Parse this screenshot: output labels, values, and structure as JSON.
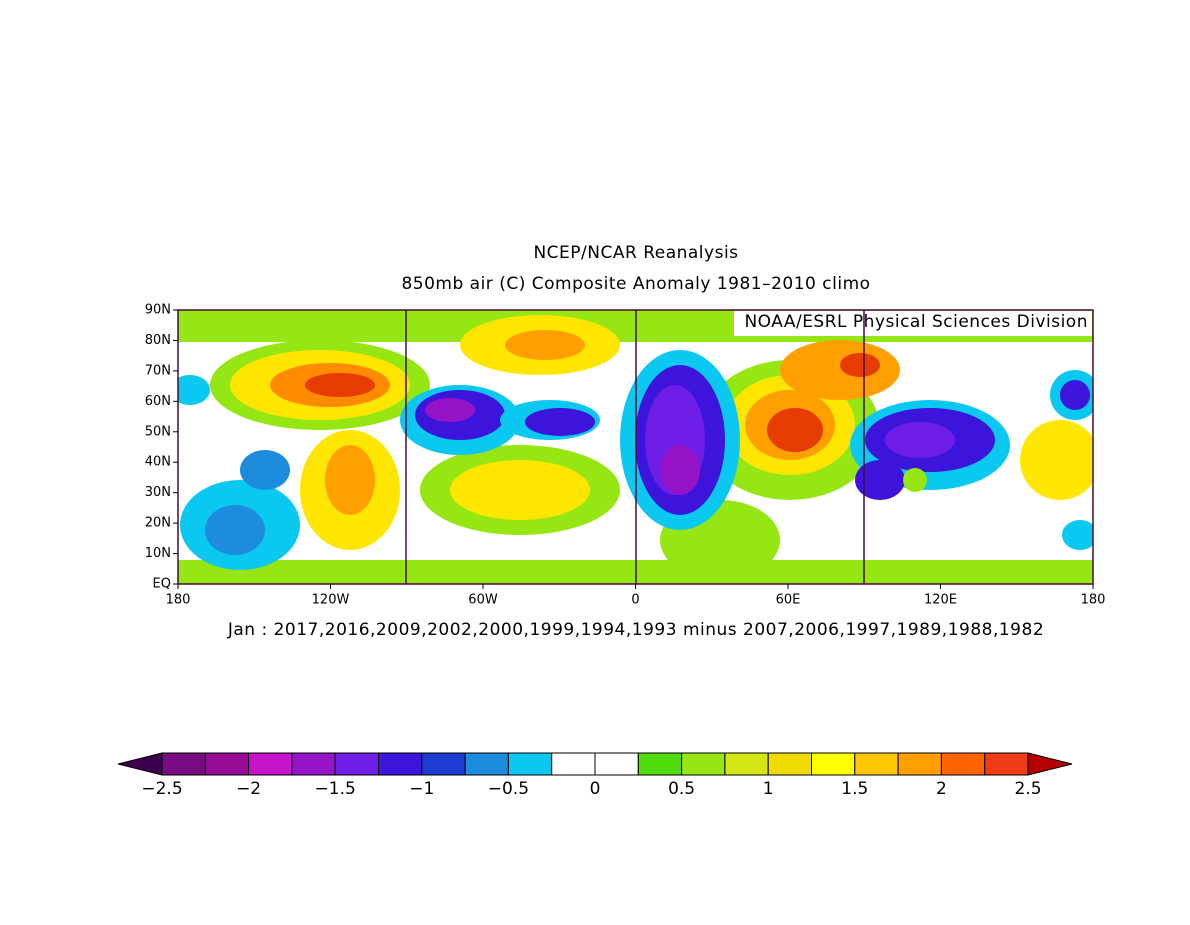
{
  "title": "NCEP/NCAR Reanalysis",
  "subtitle": "850mb air (C) Composite Anomaly 1981–2010 climo",
  "credit": "NOAA/ESRL Physical Sciences Division",
  "caption": "Jan : 2017,2016,2009,2002,2000,1999,1994,1993 minus 2007,2006,1997,1989,1988,1982",
  "lat_labels": [
    "EQ",
    "10N",
    "20N",
    "30N",
    "40N",
    "50N",
    "60N",
    "70N",
    "80N",
    "90N"
  ],
  "lon_labels": [
    "180",
    "120W",
    "60W",
    "0",
    "60E",
    "120E",
    "180"
  ],
  "colorbar": {
    "labels": [
      "−2.5",
      "−2",
      "−1.5",
      "−1",
      "−0.5",
      "0",
      "0.5",
      "1",
      "1.5",
      "2",
      "2.5"
    ],
    "low_color": "#3c0050",
    "high_color": "#b40000",
    "colors": [
      "#780a82",
      "#960a96",
      "#c814c8",
      "#9614c8",
      "#6e1ee6",
      "#3c14dc",
      "#1e3cd2",
      "#1e8cdc",
      "#0ac8f0",
      "#ffffff",
      "#ffffff",
      "#50dc0a",
      "#96e614",
      "#d2e614",
      "#f0dc00",
      "#ffff00",
      "#ffc800",
      "#ffa000",
      "#ff6400",
      "#f03c14"
    ]
  }
}
